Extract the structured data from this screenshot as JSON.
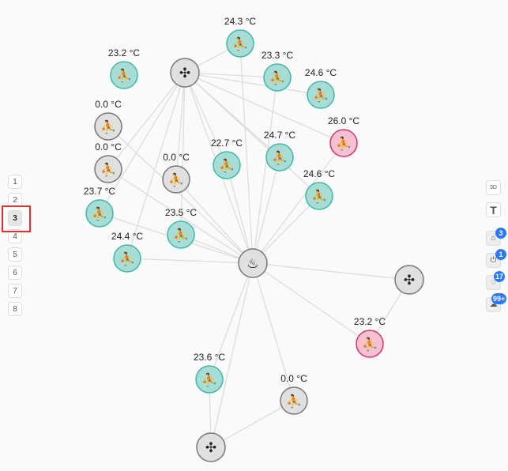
{
  "levels": {
    "items": [
      "1",
      "2",
      "3",
      "4",
      "5",
      "6",
      "7",
      "8"
    ],
    "active": "3"
  },
  "toolbar": {
    "view_3d": "3D",
    "text_tool": "T",
    "badges": {
      "rooms": "3",
      "plugs": "1",
      "lights": "17",
      "climate": "99+"
    }
  },
  "colors": {
    "normal": "#a8ddd6",
    "normal_border": "#3fb8a9",
    "alert": "#f5c0cf",
    "alert_border": "#d6336c",
    "offline": "#e0e0e0",
    "offline_border": "#777",
    "edge": "#dddddd"
  },
  "nodes": [
    {
      "id": "fan1",
      "type": "fan"
    },
    {
      "id": "heat",
      "type": "fire"
    },
    {
      "id": "fan2",
      "type": "fan"
    },
    {
      "id": "fan3",
      "type": "fan"
    },
    {
      "id": "s1",
      "type": "sensor",
      "label": "24.3 °C",
      "state": "normal"
    },
    {
      "id": "s2",
      "type": "sensor",
      "label": "23.2 °C",
      "state": "normal"
    },
    {
      "id": "s3",
      "type": "sensor",
      "label": "23.3 °C",
      "state": "normal"
    },
    {
      "id": "s4",
      "type": "sensor",
      "label": "24.6 °C",
      "state": "normal"
    },
    {
      "id": "s5",
      "type": "sensor",
      "label": "0.0 °C",
      "state": "offline"
    },
    {
      "id": "s6",
      "type": "sensor",
      "label": "26.0 °C",
      "state": "alert"
    },
    {
      "id": "s7",
      "type": "sensor",
      "label": "0.0 °C",
      "state": "offline"
    },
    {
      "id": "s8",
      "type": "sensor",
      "label": "0.0 °C",
      "state": "offline"
    },
    {
      "id": "s9",
      "type": "sensor",
      "label": "22.7 °C",
      "state": "normal"
    },
    {
      "id": "s10",
      "type": "sensor",
      "label": "24.7 °C",
      "state": "normal"
    },
    {
      "id": "s11",
      "type": "sensor",
      "label": "24.6 °C",
      "state": "normal"
    },
    {
      "id": "s12",
      "type": "sensor",
      "label": "23.7 °C",
      "state": "normal"
    },
    {
      "id": "s13",
      "type": "sensor",
      "label": "23.5 °C",
      "state": "normal"
    },
    {
      "id": "s14",
      "type": "sensor",
      "label": "24.4 °C",
      "state": "normal"
    },
    {
      "id": "s15",
      "type": "sensor",
      "label": "23.2 °C",
      "state": "alert"
    },
    {
      "id": "s16",
      "type": "sensor",
      "label": "23.6 °C",
      "state": "normal"
    },
    {
      "id": "s17",
      "type": "sensor",
      "label": "0.0 °C",
      "state": "offline"
    }
  ],
  "edges": [
    [
      "fan1",
      "s1"
    ],
    [
      "fan1",
      "s3"
    ],
    [
      "fan1",
      "s4"
    ],
    [
      "fan1",
      "s6"
    ],
    [
      "fan1",
      "s9"
    ],
    [
      "fan1",
      "s10"
    ],
    [
      "fan1",
      "s11"
    ],
    [
      "fan1",
      "s12"
    ],
    [
      "fan1",
      "s13"
    ],
    [
      "fan1",
      "s14"
    ],
    [
      "fan1",
      "s8"
    ],
    [
      "fan1",
      "heat"
    ],
    [
      "fan1",
      "s7"
    ],
    [
      "heat",
      "s1"
    ],
    [
      "heat",
      "s3"
    ],
    [
      "heat",
      "s10"
    ],
    [
      "heat",
      "s11"
    ],
    [
      "heat",
      "s5"
    ],
    [
      "heat",
      "s7"
    ],
    [
      "heat",
      "s8"
    ],
    [
      "heat",
      "s9"
    ],
    [
      "heat",
      "s12"
    ],
    [
      "heat",
      "s13"
    ],
    [
      "heat",
      "s14"
    ],
    [
      "heat",
      "s6"
    ],
    [
      "heat",
      "s16"
    ],
    [
      "heat",
      "s17"
    ],
    [
      "heat",
      "fan2"
    ],
    [
      "heat",
      "fan3"
    ],
    [
      "heat",
      "s15"
    ],
    [
      "fan2",
      "s15"
    ],
    [
      "fan3",
      "s16"
    ],
    [
      "fan3",
      "s17"
    ]
  ]
}
